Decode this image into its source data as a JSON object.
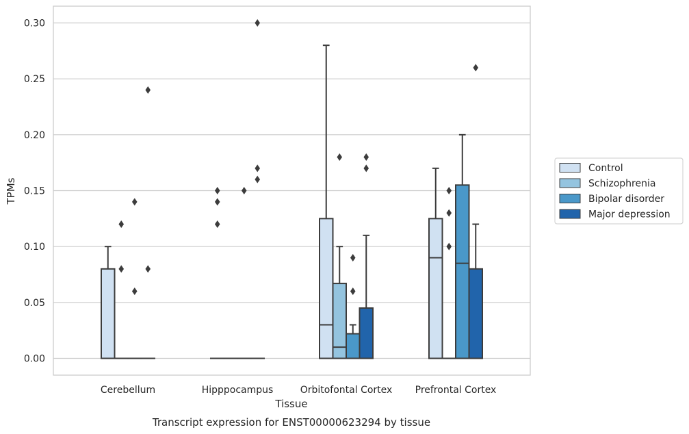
{
  "caption": "Transcript expression for ENST00000623294 by tissue",
  "chart_data": {
    "type": "box",
    "xlabel": "Tissue",
    "ylabel": "TPMs",
    "ylim": [
      -0.015,
      0.315
    ],
    "yticks": [
      "0.00",
      "0.05",
      "0.10",
      "0.15",
      "0.20",
      "0.25",
      "0.30"
    ],
    "ytick_values": [
      0,
      0.05,
      0.1,
      0.15,
      0.2,
      0.25,
      0.3
    ],
    "grid": "horizontal",
    "legend_position": "right",
    "categories": [
      "Cerebellum",
      "Hipppocampus",
      "Orbitofontal Cortex",
      "Prefrontal Cortex"
    ],
    "series": [
      {
        "name": "Control",
        "color": "#d0e1f2",
        "boxes": [
          {
            "q1": 0,
            "median": 0,
            "q3": 0.08,
            "whisker_low": 0,
            "whisker_high": 0.1,
            "outliers": []
          },
          {
            "q1": 0,
            "median": 0,
            "q3": 0,
            "whisker_low": 0,
            "whisker_high": 0,
            "outliers": [
              0.12,
              0.14,
              0.15
            ]
          },
          {
            "q1": 0,
            "median": 0.03,
            "q3": 0.125,
            "whisker_low": 0,
            "whisker_high": 0.28,
            "outliers": []
          },
          {
            "q1": 0,
            "median": 0.09,
            "q3": 0.125,
            "whisker_low": 0,
            "whisker_high": 0.17,
            "outliers": []
          }
        ]
      },
      {
        "name": "Schizophrenia",
        "color": "#94c4df",
        "boxes": [
          {
            "q1": 0,
            "median": 0,
            "q3": 0,
            "whisker_low": 0,
            "whisker_high": 0,
            "outliers": [
              0.08,
              0.12
            ]
          },
          {
            "q1": 0,
            "median": 0,
            "q3": 0,
            "whisker_low": 0,
            "whisker_high": 0,
            "outliers": []
          },
          {
            "q1": 0,
            "median": 0.01,
            "q3": 0.067,
            "whisker_low": 0,
            "whisker_high": 0.1,
            "outliers": [
              0.18
            ]
          },
          {
            "q1": 0,
            "median": 0,
            "q3": 0,
            "whisker_low": 0,
            "whisker_high": 0,
            "outliers": [
              0.1,
              0.13,
              0.15
            ]
          }
        ]
      },
      {
        "name": "Bipolar disorder",
        "color": "#4a98c9",
        "boxes": [
          {
            "q1": 0,
            "median": 0,
            "q3": 0,
            "whisker_low": 0,
            "whisker_high": 0,
            "outliers": [
              0.06,
              0.14
            ]
          },
          {
            "q1": 0,
            "median": 0,
            "q3": 0,
            "whisker_low": 0,
            "whisker_high": 0,
            "outliers": [
              0.15
            ]
          },
          {
            "q1": 0,
            "median": 0,
            "q3": 0.022,
            "whisker_low": 0,
            "whisker_high": 0.03,
            "outliers": [
              0.06,
              0.09
            ]
          },
          {
            "q1": 0,
            "median": 0.085,
            "q3": 0.155,
            "whisker_low": 0,
            "whisker_high": 0.2,
            "outliers": []
          }
        ]
      },
      {
        "name": "Major depression",
        "color": "#2164ab",
        "boxes": [
          {
            "q1": 0,
            "median": 0,
            "q3": 0,
            "whisker_low": 0,
            "whisker_high": 0,
            "outliers": [
              0.08,
              0.24
            ]
          },
          {
            "q1": 0,
            "median": 0,
            "q3": 0,
            "whisker_low": 0,
            "whisker_high": 0,
            "outliers": [
              0.16,
              0.17,
              0.3
            ]
          },
          {
            "q1": 0,
            "median": 0,
            "q3": 0.045,
            "whisker_low": 0,
            "whisker_high": 0.11,
            "outliers": [
              0.17,
              0.18
            ]
          },
          {
            "q1": 0,
            "median": 0,
            "q3": 0.08,
            "whisker_low": 0,
            "whisker_high": 0.12,
            "outliers": [
              0.26
            ]
          }
        ]
      }
    ]
  }
}
